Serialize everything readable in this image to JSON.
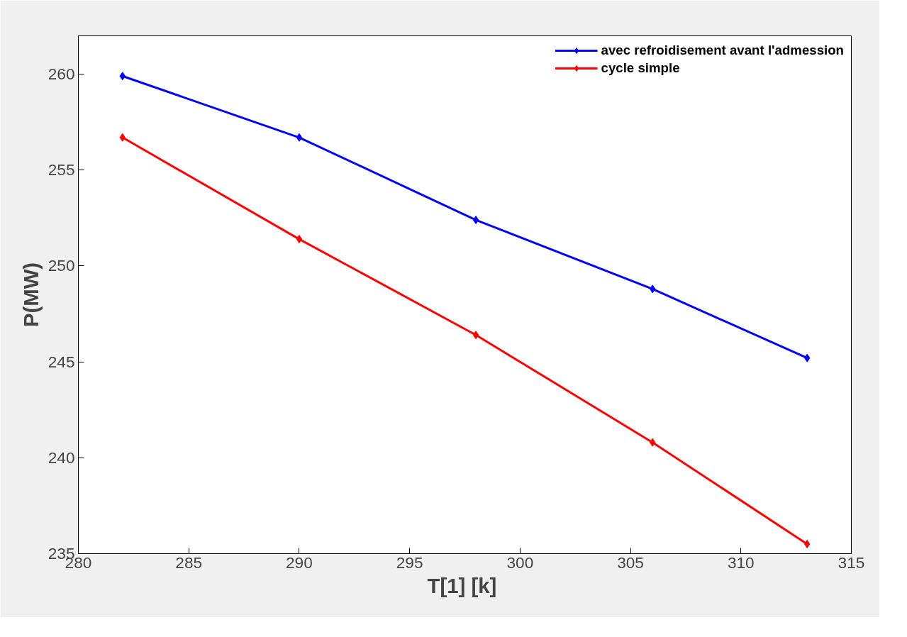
{
  "chart_data": {
    "type": "line",
    "xlabel": "T[1]  [k]",
    "ylabel": "P(MW)",
    "x": [
      282,
      290,
      298,
      306,
      313
    ],
    "series": [
      {
        "name": "avec refroidisement avant l'admession",
        "color": "#0000ff",
        "values": [
          259.9,
          256.7,
          252.4,
          248.8,
          245.2
        ]
      },
      {
        "name": "cycle simple",
        "color": "#ff0000",
        "values": [
          256.7,
          251.4,
          246.4,
          240.8,
          235.5
        ]
      }
    ],
    "xlim": [
      280,
      315
    ],
    "xticks": [
      280,
      285,
      290,
      295,
      300,
      305,
      310,
      315
    ],
    "ylim": [
      235,
      262
    ],
    "yticks": [
      235,
      240,
      245,
      250,
      255,
      260
    ],
    "grid": false,
    "legend": "top right",
    "marker": "diamond",
    "line_style": "solid"
  }
}
